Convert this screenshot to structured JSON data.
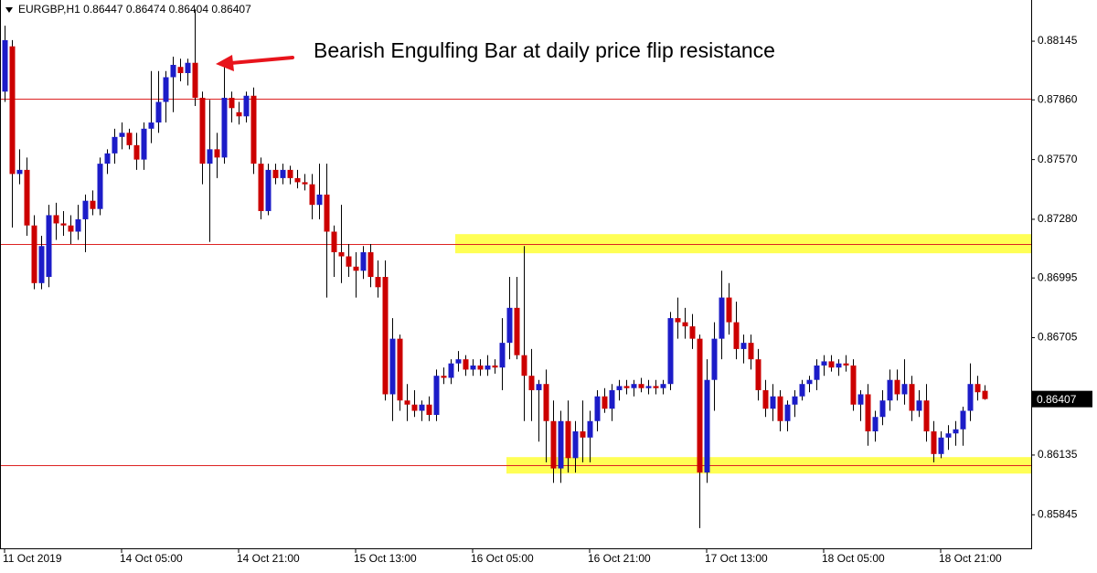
{
  "chart_data": {
    "type": "candlestick",
    "symbol": "EURGBP,H1",
    "annotation": "Bearish Engulfing Bar at daily price flip resistance",
    "up_color": "#1c1cc8",
    "down_color": "#cc0000",
    "line_color": "#dd2222",
    "zone_color": "#ffff55",
    "ylim": [
      0.85682,
      0.88345
    ],
    "yticks": [
      0.88145,
      {
        "value": 0.8786,
        "label": "0.87860"
      },
      {
        "value": 0.8757,
        "label": "0.87570"
      },
      {
        "value": 0.8728,
        "label": "0.87280"
      },
      0.86995,
      0.86705,
      0.86135,
      0.85845
    ],
    "hlines": [
      0.87865,
      0.8716,
      0.86085
    ],
    "zones": [
      {
        "from": 0.87115,
        "to": 0.87208,
        "start": 62
      },
      {
        "from": 0.86045,
        "to": 0.86125,
        "start": 69
      }
    ],
    "categories": [
      "11 Oct 2019",
      null,
      null,
      null,
      null,
      null,
      null,
      null,
      null,
      null,
      null,
      null,
      null,
      null,
      null,
      null,
      "14 Oct 05:00",
      null,
      null,
      null,
      null,
      null,
      null,
      null,
      null,
      null,
      null,
      null,
      null,
      null,
      null,
      null,
      "14 Oct 21:00",
      null,
      null,
      null,
      null,
      null,
      null,
      null,
      null,
      null,
      null,
      null,
      null,
      null,
      null,
      null,
      "15 Oct 13:00",
      null,
      null,
      null,
      null,
      null,
      null,
      null,
      null,
      null,
      null,
      null,
      null,
      null,
      null,
      null,
      "16 Oct 05:00",
      null,
      null,
      null,
      null,
      null,
      null,
      null,
      null,
      null,
      null,
      null,
      null,
      null,
      null,
      null,
      "16 Oct 21:00",
      null,
      null,
      null,
      null,
      null,
      null,
      null,
      null,
      null,
      null,
      null,
      null,
      null,
      null,
      null,
      "17 Oct 13:00",
      null,
      null,
      null,
      null,
      null,
      null,
      null,
      null,
      null,
      null,
      null,
      null,
      null,
      null,
      null,
      "18 Oct 05:00",
      null,
      null,
      null,
      null,
      null,
      null,
      null,
      null,
      null,
      null,
      null,
      null,
      null,
      null,
      null,
      "18 Oct 21:00",
      null,
      null,
      null,
      null,
      null,
      null
    ],
    "open": [
      0.879,
      0.8812,
      0.875,
      0.8752,
      0.8725,
      0.8697,
      0.87,
      0.873,
      0.8726,
      0.8725,
      0.8722,
      0.8728,
      0.8737,
      0.8733,
      0.8755,
      0.876,
      0.8768,
      0.877,
      0.8764,
      0.8757,
      0.8772,
      0.8775,
      0.8785,
      0.8797,
      0.8802,
      0.8799,
      0.8804,
      0.8787,
      0.8755,
      0.8762,
      0.8758,
      0.8787,
      0.878,
      0.8778,
      0.8788,
      0.8755,
      0.8732,
      0.8752,
      0.8748,
      0.8752,
      0.8748,
      0.8746,
      0.8745,
      0.8735,
      0.874,
      0.8722,
      0.8712,
      0.871,
      0.8705,
      0.8703,
      0.8712,
      0.87,
      0.87,
      0.8643,
      0.867,
      0.864,
      0.8638,
      0.8635,
      0.8638,
      0.8633,
      0.8652,
      0.8651,
      0.8658,
      0.866,
      0.8655,
      0.8657,
      0.8655,
      0.8657,
      0.8656,
      0.8668,
      0.8685,
      0.8662,
      0.8652,
      0.8645,
      0.8648,
      0.863,
      0.8607,
      0.863,
      0.8612,
      0.8625,
      0.8622,
      0.863,
      0.8642,
      0.8636,
      0.8645,
      0.8647,
      0.8646,
      0.8648,
      0.8646,
      0.8647,
      0.8646,
      0.8648,
      0.868,
      0.8678,
      0.8676,
      0.867,
      0.8605,
      0.865,
      0.867,
      0.869,
      0.8678,
      0.8665,
      0.8668,
      0.866,
      0.8645,
      0.8636,
      0.8642,
      0.863,
      0.8638,
      0.8642,
      0.8648,
      0.865,
      0.8657,
      0.8659,
      0.8656,
      0.8658,
      0.8657,
      0.8638,
      0.8643,
      0.8625,
      0.8632,
      0.864,
      0.865,
      0.8643,
      0.8648,
      0.8635,
      0.864,
      0.8625,
      0.8614,
      0.8622,
      0.8624,
      0.8626,
      0.8635,
      0.8648,
      0.86447
    ],
    "high": [
      0.8822,
      0.8815,
      0.8762,
      0.8758,
      0.873,
      0.872,
      0.8735,
      0.8736,
      0.8732,
      0.873,
      0.8735,
      0.874,
      0.8742,
      0.8758,
      0.8762,
      0.8772,
      0.8775,
      0.8772,
      0.877,
      0.8775,
      0.88,
      0.88,
      0.88,
      0.8807,
      0.8806,
      0.8806,
      0.883,
      0.879,
      0.8786,
      0.877,
      0.8802,
      0.879,
      0.8785,
      0.879,
      0.8792,
      0.8758,
      0.8755,
      0.8755,
      0.8755,
      0.8754,
      0.8752,
      0.875,
      0.875,
      0.8755,
      0.8755,
      0.8725,
      0.8735,
      0.8716,
      0.8712,
      0.8715,
      0.8716,
      0.8708,
      0.8708,
      0.868,
      0.8672,
      0.8648,
      0.8645,
      0.864,
      0.8642,
      0.8655,
      0.8656,
      0.866,
      0.8664,
      0.8662,
      0.866,
      0.866,
      0.8662,
      0.866,
      0.868,
      0.87,
      0.87,
      0.8715,
      0.8665,
      0.865,
      0.8655,
      0.864,
      0.8635,
      0.864,
      0.863,
      0.864,
      0.8635,
      0.8645,
      0.8646,
      0.8648,
      0.865,
      0.865,
      0.865,
      0.8651,
      0.865,
      0.865,
      0.865,
      0.8683,
      0.869,
      0.8685,
      0.8682,
      0.8672,
      0.866,
      0.8678,
      0.8703,
      0.8697,
      0.8688,
      0.8672,
      0.8672,
      0.8665,
      0.865,
      0.8648,
      0.8645,
      0.864,
      0.8645,
      0.865,
      0.8652,
      0.866,
      0.8662,
      0.8662,
      0.866,
      0.8662,
      0.866,
      0.8645,
      0.8648,
      0.8635,
      0.8645,
      0.8655,
      0.8655,
      0.866,
      0.8652,
      0.8645,
      0.8648,
      0.863,
      0.8625,
      0.8628,
      0.863,
      0.8637,
      0.8658,
      0.8652,
      0.86474
    ],
    "low": [
      0.8785,
      0.8724,
      0.8745,
      0.872,
      0.8694,
      0.8694,
      0.8695,
      0.8718,
      0.872,
      0.8716,
      0.8718,
      0.8712,
      0.873,
      0.873,
      0.875,
      0.8755,
      0.8762,
      0.8762,
      0.8752,
      0.8752,
      0.8765,
      0.877,
      0.8775,
      0.878,
      0.8795,
      0.8793,
      0.8783,
      0.8745,
      0.8717,
      0.8748,
      0.8755,
      0.8775,
      0.8774,
      0.8775,
      0.875,
      0.8728,
      0.873,
      0.8745,
      0.8745,
      0.8745,
      0.8743,
      0.8742,
      0.8728,
      0.8728,
      0.869,
      0.87,
      0.8697,
      0.87,
      0.869,
      0.8699,
      0.8695,
      0.869,
      0.864,
      0.863,
      0.8635,
      0.863,
      0.8632,
      0.863,
      0.863,
      0.863,
      0.8648,
      0.8648,
      0.8654,
      0.8652,
      0.8652,
      0.8652,
      0.8652,
      0.8653,
      0.8645,
      0.866,
      0.866,
      0.863,
      0.863,
      0.862,
      0.861,
      0.86,
      0.86,
      0.8605,
      0.8605,
      0.861,
      0.861,
      0.8625,
      0.8634,
      0.863,
      0.864,
      0.8643,
      0.8642,
      0.8644,
      0.8643,
      0.8643,
      0.8643,
      0.8645,
      0.867,
      0.867,
      0.8665,
      0.8578,
      0.86,
      0.8635,
      0.866,
      0.8672,
      0.866,
      0.8658,
      0.8655,
      0.864,
      0.8632,
      0.863,
      0.8625,
      0.8625,
      0.8632,
      0.864,
      0.8644,
      0.8645,
      0.8652,
      0.8654,
      0.8652,
      0.8654,
      0.8635,
      0.863,
      0.8618,
      0.862,
      0.8628,
      0.8635,
      0.864,
      0.8638,
      0.863,
      0.8632,
      0.862,
      0.861,
      0.8612,
      0.8616,
      0.8618,
      0.8618,
      0.863,
      0.864,
      0.86404
    ],
    "close": [
      0.8815,
      0.875,
      0.8752,
      0.8725,
      0.8697,
      0.8715,
      0.873,
      0.8726,
      0.8725,
      0.8722,
      0.8728,
      0.8737,
      0.8733,
      0.8755,
      0.876,
      0.8768,
      0.877,
      0.8764,
      0.8757,
      0.8772,
      0.8775,
      0.8785,
      0.8797,
      0.8803,
      0.8799,
      0.8804,
      0.8787,
      0.8755,
      0.8762,
      0.8758,
      0.8787,
      0.8782,
      0.8778,
      0.8788,
      0.8755,
      0.8732,
      0.8752,
      0.8748,
      0.8752,
      0.8748,
      0.8746,
      0.8745,
      0.8735,
      0.874,
      0.8722,
      0.8712,
      0.871,
      0.8705,
      0.8703,
      0.8712,
      0.87,
      0.8695,
      0.8643,
      0.867,
      0.864,
      0.8638,
      0.8635,
      0.8638,
      0.8633,
      0.8652,
      0.8651,
      0.8658,
      0.866,
      0.8655,
      0.8657,
      0.8655,
      0.8657,
      0.8656,
      0.8668,
      0.8685,
      0.8662,
      0.8652,
      0.8645,
      0.8648,
      0.863,
      0.8607,
      0.863,
      0.8612,
      0.8625,
      0.8622,
      0.863,
      0.8642,
      0.8636,
      0.8645,
      0.8647,
      0.8646,
      0.8648,
      0.8646,
      0.8647,
      0.8646,
      0.8648,
      0.868,
      0.8678,
      0.8676,
      0.867,
      0.8605,
      0.865,
      0.867,
      0.869,
      0.8678,
      0.8665,
      0.8668,
      0.866,
      0.8645,
      0.8636,
      0.8642,
      0.863,
      0.8638,
      0.8642,
      0.8648,
      0.865,
      0.8657,
      0.8659,
      0.8656,
      0.8658,
      0.8657,
      0.8638,
      0.8643,
      0.8625,
      0.8632,
      0.864,
      0.865,
      0.8643,
      0.8648,
      0.8635,
      0.864,
      0.8625,
      0.8614,
      0.8622,
      0.8624,
      0.8626,
      0.8635,
      0.8648,
      0.8644,
      0.86407
    ]
  }
}
